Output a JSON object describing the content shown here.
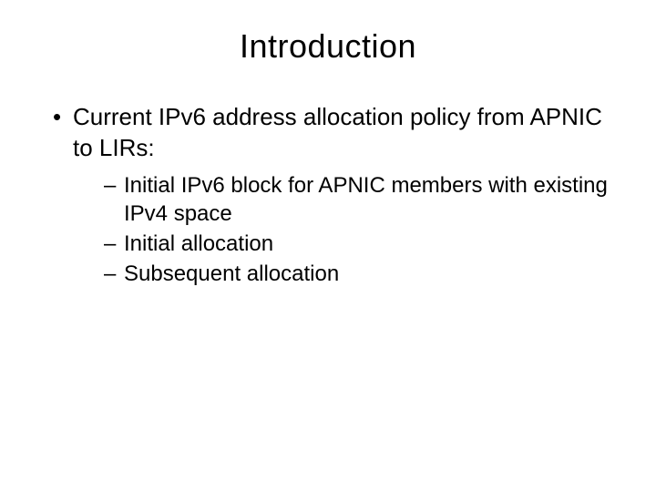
{
  "slide": {
    "title": "Introduction",
    "title_fontsize": 36,
    "title_color": "#000000",
    "background_color": "#ffffff",
    "bullets": [
      {
        "text": "Current IPv6 address allocation policy from APNIC to LIRs:",
        "fontsize": 26,
        "sub": [
          {
            "text": "Initial IPv6 block for APNIC members with existing IPv4 space",
            "fontsize": 24
          },
          {
            "text": "Initial allocation",
            "fontsize": 24
          },
          {
            "text": "Subsequent allocation",
            "fontsize": 24
          }
        ]
      }
    ]
  }
}
